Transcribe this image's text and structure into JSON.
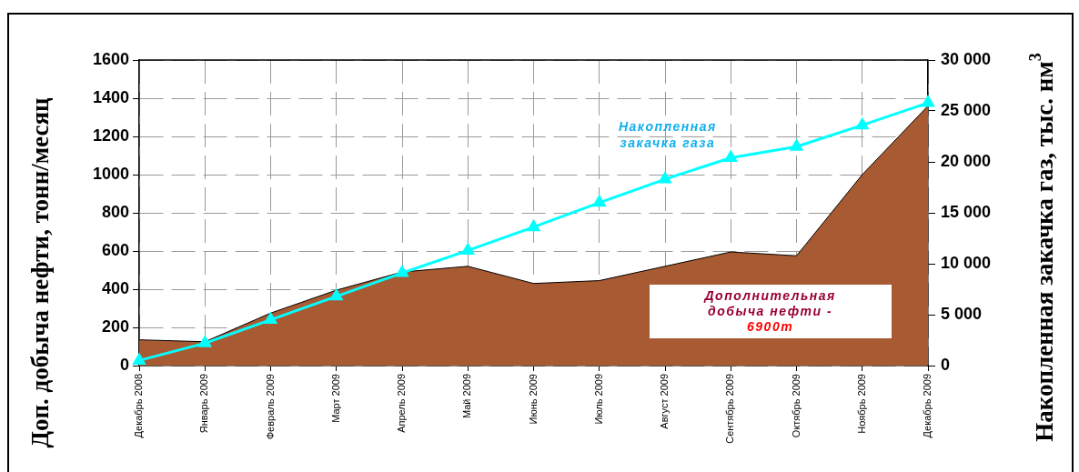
{
  "chart_data": {
    "type": "area",
    "categories": [
      "Декабрь 2008",
      "Январь 2009",
      "Февраль 2009",
      "Март 2009",
      "Апрель 2009",
      "Май 2009",
      "Июнь 2009",
      "Июль 2009",
      "Август 2009",
      "Сентябрь 2009",
      "Октябрь 2009",
      "Ноябрь 2009",
      "Декабрь 2009"
    ],
    "ylabel": "Доп. добыча нефти, тонн/месяц",
    "y2label": "Накопленная закачка газ, тыс. нм$^{3}$",
    "ylim": [
      0,
      1600
    ],
    "yticks": [
      0,
      200,
      400,
      600,
      800,
      1000,
      1200,
      1400,
      1600
    ],
    "y2lim": [
      0,
      30000
    ],
    "y2ticks": [
      0,
      {
        "value": 5000,
        "label": "5 000"
      },
      {
        "value": 10000,
        "label": "10 000"
      },
      {
        "value": 15000,
        "label": "15 000"
      },
      {
        "value": 20000,
        "label": "20 000"
      },
      {
        "value": 25000,
        "label": "25 000"
      },
      {
        "value": 30000,
        "label": "30 000"
      }
    ],
    "grid": true,
    "series": [
      {
        "name": "Дополнительная добыча нефти -",
        "color": "#a85a32",
        "values": [
          135,
          125,
          275,
          395,
          490,
          520,
          430,
          445,
          520,
          595,
          575,
          1000,
          1360
        ]
      },
      {
        "name": "Накопленная закачка газа",
        "type": "line",
        "axis": "y2",
        "color": "#00ffff",
        "marker": "triangle",
        "values": [
          500,
          2200,
          4500,
          6800,
          9100,
          11300,
          13600,
          16000,
          18300,
          20400,
          21500,
          23600,
          25800
        ]
      }
    ],
    "annotations": [
      "6900т"
    ]
  }
}
